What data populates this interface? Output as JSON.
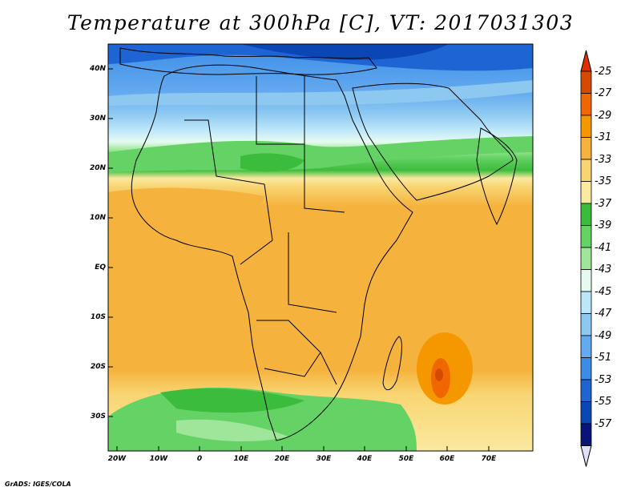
{
  "title": "Temperature at 300hPa [C], VT: 2017031303",
  "footer": "GrADS: IGES/COLA",
  "lat_labels": [
    "40N",
    "30N",
    "20N",
    "10N",
    "EQ",
    "10S",
    "20S",
    "30S"
  ],
  "lon_labels": [
    "20W",
    "10W",
    "0",
    "10E",
    "20E",
    "30E",
    "40E",
    "50E",
    "60E",
    "70E"
  ],
  "colorbar": {
    "labels": [
      "-25",
      "-27",
      "-29",
      "-31",
      "-33",
      "-35",
      "-37",
      "-39",
      "-41",
      "-43",
      "-45",
      "-47",
      "-49",
      "-51",
      "-53",
      "-55",
      "-57"
    ],
    "colors": [
      "#d44a00",
      "#f06600",
      "#f59800",
      "#f5b23c",
      "#f8d572",
      "#fbe9a0",
      "#3cbc3c",
      "#64d264",
      "#a0e69a",
      "#e6fbf0",
      "#bce6fa",
      "#8cc8f0",
      "#64aaf0",
      "#3c8ce6",
      "#1e64d2",
      "#0a46b4",
      "#0a1478"
    ],
    "under_color": "#e0e0f8",
    "over_color": "#e03000"
  }
}
